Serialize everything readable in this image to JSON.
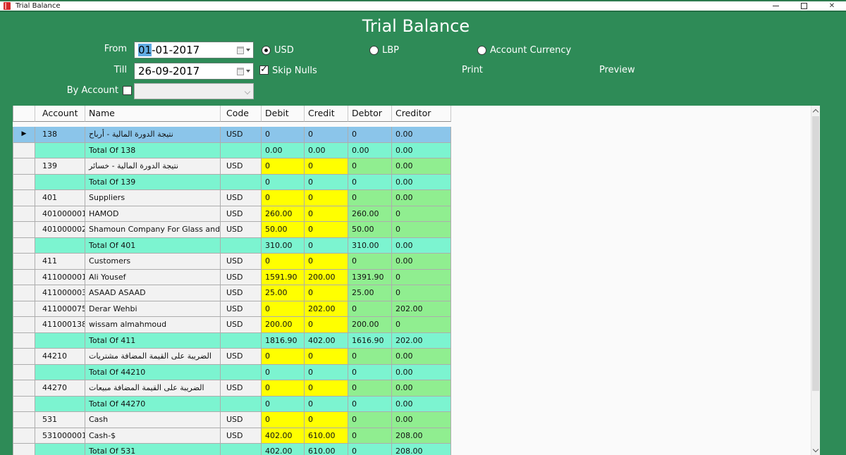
{
  "window": {
    "title": "Trial Balance"
  },
  "header": {
    "title": "Trial Balance"
  },
  "filters": {
    "from_label": "From",
    "from_value_selected": "01",
    "from_value_rest": "-01-2017",
    "till_label": "Till",
    "till_value": "26-09-2017",
    "by_account_label": "By Account",
    "by_account_checked": false,
    "skip_nulls_label": "Skip Nulls",
    "skip_nulls_checked": true,
    "currencies": [
      {
        "label": "USD",
        "selected": true
      },
      {
        "label": "LBP",
        "selected": false
      },
      {
        "label": "Account Currency",
        "selected": false
      }
    ],
    "print_label": "Print",
    "preview_label": "Preview"
  },
  "grid": {
    "columns": [
      "Account",
      "Name",
      "Code",
      "Debit",
      "Credit",
      "Debtor",
      "Creditor"
    ],
    "rows": [
      {
        "type": "data",
        "selected": true,
        "account": "138",
        "name": "نتيجة الدورة المالية - أرباح",
        "code": "USD",
        "debit": "0",
        "credit": "0",
        "debtor": "0",
        "creditor": "0.00"
      },
      {
        "type": "total",
        "account": "",
        "name": "Total Of 138",
        "code": "",
        "debit": "0.00",
        "credit": "0.00",
        "debtor": "0.00",
        "creditor": "0.00"
      },
      {
        "type": "data",
        "account": "139",
        "name": "نتيجة الدورة المالية - خسائر",
        "code": "USD",
        "debit": "0",
        "credit": "0",
        "debtor": "0",
        "creditor": "0.00"
      },
      {
        "type": "total",
        "account": "",
        "name": "Total Of 139",
        "code": "",
        "debit": "0",
        "credit": "0",
        "debtor": "0",
        "creditor": "0.00"
      },
      {
        "type": "data",
        "account": "401",
        "name": "Suppliers",
        "code": "USD",
        "debit": "0",
        "credit": "0",
        "debtor": "0",
        "creditor": "0.00"
      },
      {
        "type": "data",
        "account": "401000001",
        "name": "HAMOD",
        "code": "USD",
        "debit": "260.00",
        "credit": "0",
        "debtor": "260.00",
        "creditor": "0"
      },
      {
        "type": "data",
        "account": "401000002",
        "name": "Shamoun Company For Glass and Mirrors",
        "code": "USD",
        "debit": "50.00",
        "credit": "0",
        "debtor": "50.00",
        "creditor": "0"
      },
      {
        "type": "total",
        "account": "",
        "name": "Total Of 401",
        "code": "",
        "debit": "310.00",
        "credit": "0",
        "debtor": "310.00",
        "creditor": "0.00"
      },
      {
        "type": "data",
        "account": "411",
        "name": "Customers",
        "code": "USD",
        "debit": "0",
        "credit": "0",
        "debtor": "0",
        "creditor": "0.00"
      },
      {
        "type": "data",
        "account": "411000001",
        "name": "Ali Yousef",
        "code": "USD",
        "debit": "1591.90",
        "credit": "200.00",
        "debtor": "1391.90",
        "creditor": "0"
      },
      {
        "type": "data",
        "account": "411000003",
        "name": "ASAAD ASAAD",
        "code": "USD",
        "debit": "25.00",
        "credit": "0",
        "debtor": "25.00",
        "creditor": "0"
      },
      {
        "type": "data",
        "account": "411000075",
        "name": "Derar Wehbi",
        "code": "USD",
        "debit": "0",
        "credit": "202.00",
        "debtor": "0",
        "creditor": "202.00"
      },
      {
        "type": "data",
        "account": "411000138",
        "name": "wissam almahmoud",
        "code": "USD",
        "debit": "200.00",
        "credit": "0",
        "debtor": "200.00",
        "creditor": "0"
      },
      {
        "type": "total",
        "account": "",
        "name": "Total Of 411",
        "code": "",
        "debit": "1816.90",
        "credit": "402.00",
        "debtor": "1616.90",
        "creditor": "202.00"
      },
      {
        "type": "data",
        "account": "44210",
        "name": "الضريبة على القيمة المضافة مشتريات",
        "code": "USD",
        "debit": "0",
        "credit": "0",
        "debtor": "0",
        "creditor": "0.00"
      },
      {
        "type": "total",
        "account": "",
        "name": "Total Of 44210",
        "code": "",
        "debit": "0",
        "credit": "0",
        "debtor": "0",
        "creditor": "0.00"
      },
      {
        "type": "data",
        "account": "44270",
        "name": "الضريبة على القيمة المضافة مبيعات",
        "code": "USD",
        "debit": "0",
        "credit": "0",
        "debtor": "0",
        "creditor": "0.00"
      },
      {
        "type": "total",
        "account": "",
        "name": "Total Of 44270",
        "code": "",
        "debit": "0",
        "credit": "0",
        "debtor": "0",
        "creditor": "0.00"
      },
      {
        "type": "data",
        "account": "531",
        "name": "Cash",
        "code": "USD",
        "debit": "0",
        "credit": "0",
        "debtor": "0",
        "creditor": "0.00"
      },
      {
        "type": "data",
        "account": "531000001",
        "name": "Cash-$",
        "code": "USD",
        "debit": "402.00",
        "credit": "610.00",
        "debtor": "0",
        "creditor": "208.00"
      },
      {
        "type": "total",
        "account": "",
        "name": "Total Of 531",
        "code": "",
        "debit": "402.00",
        "credit": "610.00",
        "debtor": "0",
        "creditor": "208.00"
      }
    ]
  },
  "colors": {
    "app_green": "#2E8B57",
    "cell_yellow": "#FFFF00",
    "cell_green": "#90EE90",
    "total_cyan": "#7CF4D0",
    "selected_blue": "#8BC5EA"
  }
}
